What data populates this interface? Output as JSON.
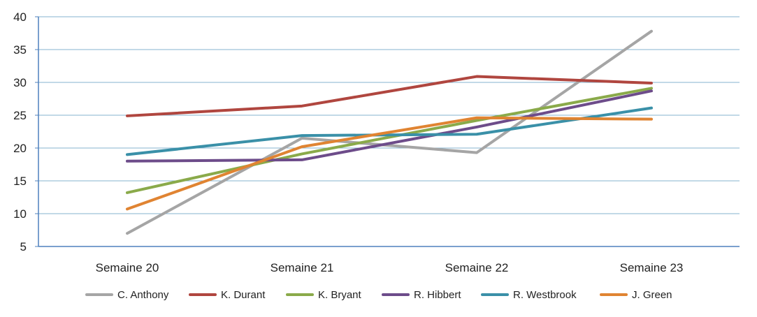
{
  "chart_data": {
    "type": "line",
    "title": "",
    "xlabel": "",
    "ylabel": "",
    "categories": [
      "Semaine 20",
      "Semaine 21",
      "Semaine 22",
      "Semaine 23"
    ],
    "ylim": [
      5,
      40
    ],
    "yticks": [
      5,
      10,
      15,
      20,
      25,
      30,
      35,
      40
    ],
    "grid": true,
    "legend_position": "bottom",
    "series": [
      {
        "name": "C. Anthony",
        "color": "#A5A5A5",
        "values": [
          7,
          21.5,
          19.3,
          37.8
        ]
      },
      {
        "name": "K. Durant",
        "color": "#B0463F",
        "values": [
          24.9,
          26.4,
          30.9,
          29.9
        ]
      },
      {
        "name": "K. Bryant",
        "color": "#8AAA4A",
        "values": [
          13.2,
          19.1,
          24.2,
          29.1
        ]
      },
      {
        "name": "R. Hibbert",
        "color": "#6D4C8A",
        "values": [
          18,
          18.2,
          23.2,
          28.7
        ]
      },
      {
        "name": "R. Westbrook",
        "color": "#3A90A8",
        "values": [
          19,
          21.9,
          22.1,
          26.1
        ]
      },
      {
        "name": "J. Green",
        "color": "#E08432",
        "values": [
          10.7,
          20.2,
          24.6,
          24.4
        ]
      }
    ]
  }
}
